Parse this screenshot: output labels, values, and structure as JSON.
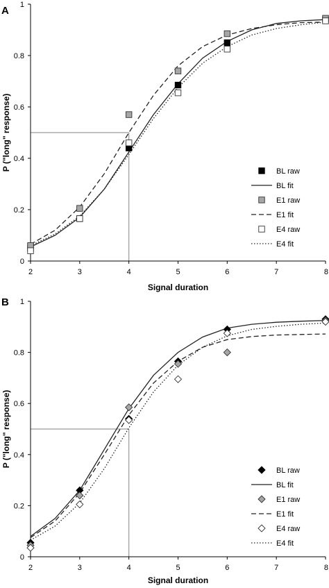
{
  "chart_data": [
    {
      "type": "line",
      "panel_label": "A",
      "xlabel": "Signal duration",
      "ylabel": "P (\"long\" response)",
      "xlim": [
        2,
        8
      ],
      "ylim": [
        0,
        1
      ],
      "x_ticks": [
        2,
        3,
        4,
        5,
        6,
        7,
        8
      ],
      "x_tick_labels": [
        "2",
        "3",
        "4",
        "5",
        "6",
        "7",
        "8"
      ],
      "y_ticks": [
        0,
        0.2,
        0.4,
        0.6,
        0.8,
        1
      ],
      "y_tick_labels": [
        "0",
        "0.2",
        "0.4",
        "0.6",
        "0.8",
        "1"
      ],
      "grid": false,
      "legend_position": "bottom-right",
      "reference_lines": {
        "y": 0.5,
        "x": 4
      },
      "x": [
        2,
        3,
        4,
        5,
        6,
        8
      ],
      "series": [
        {
          "name": "BL raw",
          "kind": "markers",
          "marker": "square",
          "fill": "#000000",
          "stroke": "#000000",
          "values": [
            0.05,
            0.165,
            0.44,
            0.685,
            0.85,
            0.94
          ]
        },
        {
          "name": "BL fit",
          "kind": "line",
          "dash": "solid",
          "stroke": "#222222",
          "curve_x": [
            2,
            2.5,
            3,
            3.5,
            4,
            4.5,
            5,
            5.5,
            6,
            6.5,
            7,
            7.5,
            8
          ],
          "curve_y": [
            0.055,
            0.1,
            0.17,
            0.28,
            0.425,
            0.57,
            0.69,
            0.79,
            0.855,
            0.9,
            0.925,
            0.935,
            0.94
          ]
        },
        {
          "name": "E1 raw",
          "kind": "markers",
          "marker": "square",
          "fill": "#a6a6a6",
          "stroke": "#333333",
          "values": [
            0.06,
            0.205,
            0.57,
            0.74,
            0.885,
            0.945
          ]
        },
        {
          "name": "E1 fit",
          "kind": "line",
          "dash": "dashed",
          "stroke": "#222222",
          "curve_x": [
            2,
            2.5,
            3,
            3.5,
            4,
            4.5,
            5,
            5.5,
            6,
            6.5,
            7,
            7.5,
            8
          ],
          "curve_y": [
            0.065,
            0.12,
            0.21,
            0.34,
            0.5,
            0.645,
            0.76,
            0.835,
            0.88,
            0.905,
            0.92,
            0.928,
            0.93
          ]
        },
        {
          "name": "E4 raw",
          "kind": "markers",
          "marker": "square",
          "fill": "#ffffff",
          "stroke": "#333333",
          "values": [
            0.04,
            0.165,
            0.46,
            0.655,
            0.825,
            0.935
          ]
        },
        {
          "name": "E4 fit",
          "kind": "line",
          "dash": "dotted",
          "stroke": "#222222",
          "curve_x": [
            2,
            2.5,
            3,
            3.5,
            4,
            4.5,
            5,
            5.5,
            6,
            6.5,
            7,
            7.5,
            8
          ],
          "curve_y": [
            0.06,
            0.105,
            0.175,
            0.28,
            0.415,
            0.555,
            0.675,
            0.77,
            0.835,
            0.88,
            0.905,
            0.92,
            0.93
          ]
        }
      ]
    },
    {
      "type": "line",
      "panel_label": "B",
      "xlabel": "Signal duration",
      "ylabel": "P (\"long\" response)",
      "xlim": [
        2,
        8
      ],
      "ylim": [
        0,
        1
      ],
      "x_ticks": [
        2,
        3,
        4,
        5,
        6,
        7,
        8
      ],
      "x_tick_labels": [
        "2",
        "3",
        "4",
        "5",
        "6",
        "7",
        "8"
      ],
      "y_ticks": [
        0,
        0.2,
        0.4,
        0.6,
        0.8,
        1
      ],
      "y_tick_labels": [
        "0",
        "0.2",
        "0.4",
        "0.6",
        "0.8",
        "1"
      ],
      "grid": false,
      "legend_position": "bottom-right",
      "reference_lines": {
        "y": 0.5,
        "x": 4
      },
      "x": [
        2,
        3,
        4,
        5,
        6,
        8
      ],
      "series": [
        {
          "name": "BL raw",
          "kind": "markers",
          "marker": "diamond",
          "fill": "#000000",
          "stroke": "#000000",
          "values": [
            0.055,
            0.26,
            0.54,
            0.765,
            0.89,
            0.93
          ]
        },
        {
          "name": "BL fit",
          "kind": "line",
          "dash": "solid",
          "stroke": "#222222",
          "curve_x": [
            2,
            2.5,
            3,
            3.5,
            4,
            4.5,
            5,
            5.5,
            6,
            6.5,
            7,
            7.5,
            8
          ],
          "curve_y": [
            0.08,
            0.15,
            0.26,
            0.42,
            0.58,
            0.71,
            0.8,
            0.86,
            0.895,
            0.91,
            0.918,
            0.922,
            0.925
          ]
        },
        {
          "name": "E1 raw",
          "kind": "markers",
          "marker": "diamond",
          "fill": "#a6a6a6",
          "stroke": "#333333",
          "values": [
            0.045,
            0.24,
            0.585,
            0.755,
            0.8,
            0.925
          ]
        },
        {
          "name": "E1 fit",
          "kind": "line",
          "dash": "dashed",
          "stroke": "#222222",
          "curve_x": [
            2,
            2.5,
            3,
            3.5,
            4,
            4.5,
            5,
            5.5,
            6,
            6.5,
            7,
            7.5,
            8
          ],
          "curve_y": [
            0.075,
            0.14,
            0.25,
            0.4,
            0.555,
            0.68,
            0.765,
            0.82,
            0.85,
            0.862,
            0.868,
            0.87,
            0.872
          ]
        },
        {
          "name": "E4 raw",
          "kind": "markers",
          "marker": "diamond",
          "fill": "#ffffff",
          "stroke": "#333333",
          "values": [
            0.035,
            0.205,
            0.535,
            0.695,
            0.875,
            0.92
          ]
        },
        {
          "name": "E4 fit",
          "kind": "line",
          "dash": "dotted",
          "stroke": "#222222",
          "curve_x": [
            2,
            2.5,
            3,
            3.5,
            4,
            4.5,
            5,
            5.5,
            6,
            6.5,
            7,
            7.5,
            8
          ],
          "curve_y": [
            0.065,
            0.12,
            0.21,
            0.345,
            0.505,
            0.645,
            0.75,
            0.82,
            0.865,
            0.89,
            0.902,
            0.91,
            0.915
          ]
        }
      ]
    }
  ]
}
